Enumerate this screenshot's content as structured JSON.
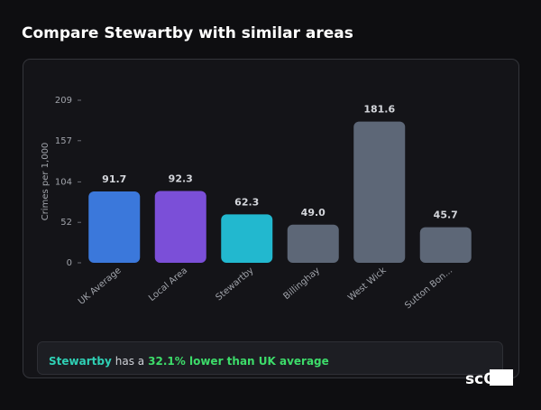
{
  "title": "Compare Stewartby with similar areas",
  "chart_data": {
    "type": "bar",
    "y_label": "Crimes per 1,000",
    "categories": [
      "UK Average",
      "Local Area",
      "Stewartby",
      "Billinghay",
      "West Wick",
      "Sutton Bon..."
    ],
    "values": [
      91.7,
      92.3,
      62.3,
      49.0,
      181.6,
      45.7
    ],
    "value_labels": [
      "91.7",
      "92.3",
      "62.3",
      "49.0",
      "181.6",
      "45.7"
    ],
    "colors": [
      "#3b78db",
      "#7b4fd8",
      "#22b8cf",
      "#5d6777",
      "#5d6777",
      "#5d6777"
    ],
    "ylim": [
      0,
      209
    ],
    "yticks": [
      0,
      52,
      104,
      157,
      209
    ]
  },
  "summary": {
    "area": "Stewartby",
    "text": "has a",
    "comparison": "32.1% lower than UK average"
  },
  "logo": "scOS"
}
